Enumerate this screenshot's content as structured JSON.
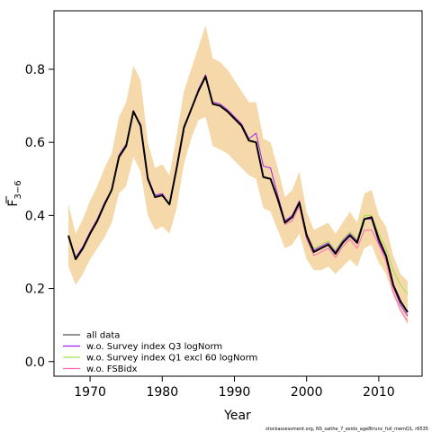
{
  "chart_data": {
    "type": "line",
    "title": "",
    "xlabel": "Year",
    "ylabel_main": "F",
    "ylabel_sub": "3−6",
    "xlim": [
      1965,
      2016
    ],
    "ylim": [
      -0.04,
      0.96
    ],
    "xticks": [
      1970,
      1980,
      1990,
      2000,
      2010
    ],
    "yticks": [
      0.0,
      0.2,
      0.4,
      0.6,
      0.8
    ],
    "ytick_labels": [
      "0.0",
      "0.2",
      "0.4",
      "0.6",
      "0.8"
    ],
    "band_color": "#f5d9ab",
    "x": [
      1967,
      1968,
      1969,
      1970,
      1971,
      1972,
      1973,
      1974,
      1975,
      1976,
      1977,
      1978,
      1979,
      1980,
      1981,
      1982,
      1983,
      1984,
      1985,
      1986,
      1987,
      1988,
      1989,
      1990,
      1991,
      1992,
      1993,
      1994,
      1995,
      1996,
      1997,
      1998,
      1999,
      2000,
      2001,
      2002,
      2003,
      2004,
      2005,
      2006,
      2007,
      2008,
      2009,
      2010,
      2011,
      2012,
      2013,
      2014
    ],
    "band_upper": [
      0.43,
      0.35,
      0.39,
      0.44,
      0.48,
      0.53,
      0.57,
      0.67,
      0.71,
      0.81,
      0.77,
      0.6,
      0.53,
      0.54,
      0.51,
      0.62,
      0.74,
      0.8,
      0.86,
      0.92,
      0.83,
      0.82,
      0.8,
      0.77,
      0.74,
      0.71,
      0.71,
      0.61,
      0.6,
      0.53,
      0.45,
      0.47,
      0.52,
      0.41,
      0.36,
      0.37,
      0.38,
      0.35,
      0.38,
      0.41,
      0.38,
      0.46,
      0.47,
      0.4,
      0.37,
      0.29,
      0.24,
      0.22
    ],
    "band_lower": [
      0.26,
      0.21,
      0.24,
      0.28,
      0.31,
      0.34,
      0.38,
      0.46,
      0.48,
      0.56,
      0.52,
      0.4,
      0.36,
      0.37,
      0.35,
      0.42,
      0.54,
      0.61,
      0.66,
      0.67,
      0.59,
      0.58,
      0.57,
      0.55,
      0.53,
      0.51,
      0.5,
      0.42,
      0.41,
      0.36,
      0.31,
      0.32,
      0.35,
      0.28,
      0.25,
      0.25,
      0.26,
      0.24,
      0.26,
      0.28,
      0.26,
      0.31,
      0.32,
      0.27,
      0.24,
      0.18,
      0.14,
      0.1
    ],
    "series": [
      {
        "name": "all data",
        "color": "#555555",
        "values": [
          0.345,
          0.28,
          0.31,
          0.35,
          0.385,
          0.43,
          0.47,
          0.56,
          0.59,
          0.685,
          0.645,
          0.5,
          0.45,
          0.455,
          0.43,
          0.53,
          0.64,
          0.69,
          0.74,
          0.78,
          0.705,
          0.7,
          0.685,
          0.665,
          0.645,
          0.605,
          0.6,
          0.505,
          0.5,
          0.445,
          0.38,
          0.395,
          0.435,
          0.345,
          0.3,
          0.31,
          0.32,
          0.295,
          0.325,
          0.345,
          0.325,
          0.39,
          0.395,
          0.335,
          0.29,
          0.21,
          0.165,
          0.135
        ]
      },
      {
        "name": "w.o. Survey index Q3 logNorm",
        "color": "#a020f0",
        "values": [
          0.34,
          0.285,
          0.315,
          0.355,
          0.39,
          0.435,
          0.47,
          0.565,
          0.595,
          0.68,
          0.65,
          0.505,
          0.455,
          0.46,
          0.43,
          0.535,
          0.645,
          0.69,
          0.745,
          0.785,
          0.71,
          0.705,
          0.69,
          0.67,
          0.65,
          0.61,
          0.625,
          0.535,
          0.53,
          0.455,
          0.385,
          0.4,
          0.44,
          0.35,
          0.305,
          0.315,
          0.325,
          0.3,
          0.33,
          0.35,
          0.33,
          0.39,
          0.39,
          0.325,
          0.285,
          0.205,
          0.155,
          0.125
        ]
      },
      {
        "name": "w.o. Survey index Q1 excl 60 logNorm",
        "color": "#a2e04a",
        "values": [
          0.345,
          0.28,
          0.31,
          0.35,
          0.385,
          0.43,
          0.47,
          0.56,
          0.59,
          0.685,
          0.645,
          0.5,
          0.45,
          0.455,
          0.43,
          0.53,
          0.64,
          0.69,
          0.74,
          0.78,
          0.705,
          0.7,
          0.685,
          0.665,
          0.645,
          0.605,
          0.6,
          0.505,
          0.5,
          0.445,
          0.38,
          0.395,
          0.435,
          0.35,
          0.31,
          0.32,
          0.33,
          0.305,
          0.335,
          0.355,
          0.335,
          0.4,
          0.4,
          0.35,
          0.31,
          0.25,
          0.21,
          0.185
        ]
      },
      {
        "name": "w.o. FSBidx",
        "color": "#ff69b4",
        "values": [
          0.345,
          0.28,
          0.31,
          0.35,
          0.385,
          0.43,
          0.47,
          0.56,
          0.59,
          0.685,
          0.645,
          0.5,
          0.45,
          0.455,
          0.43,
          0.53,
          0.64,
          0.69,
          0.74,
          0.78,
          0.705,
          0.7,
          0.685,
          0.665,
          0.645,
          0.605,
          0.6,
          0.505,
          0.5,
          0.44,
          0.375,
          0.385,
          0.425,
          0.335,
          0.29,
          0.3,
          0.31,
          0.285,
          0.315,
          0.335,
          0.31,
          0.36,
          0.36,
          0.32,
          0.275,
          0.19,
          0.14,
          0.11
        ]
      }
    ],
    "main_line": {
      "color": "#000000",
      "values": [
        0.345,
        0.28,
        0.31,
        0.35,
        0.385,
        0.43,
        0.47,
        0.56,
        0.59,
        0.685,
        0.645,
        0.5,
        0.45,
        0.455,
        0.43,
        0.53,
        0.64,
        0.69,
        0.74,
        0.78,
        0.705,
        0.7,
        0.685,
        0.665,
        0.645,
        0.605,
        0.6,
        0.505,
        0.5,
        0.445,
        0.38,
        0.395,
        0.435,
        0.345,
        0.3,
        0.31,
        0.32,
        0.295,
        0.325,
        0.345,
        0.325,
        0.39,
        0.395,
        0.335,
        0.29,
        0.21,
        0.165,
        0.135
      ]
    },
    "legend_position": "bottom-left",
    "footer": "stockassessment.org, NS_saithe_7_exidx_age8trunc_full_memQ1, r6535"
  }
}
